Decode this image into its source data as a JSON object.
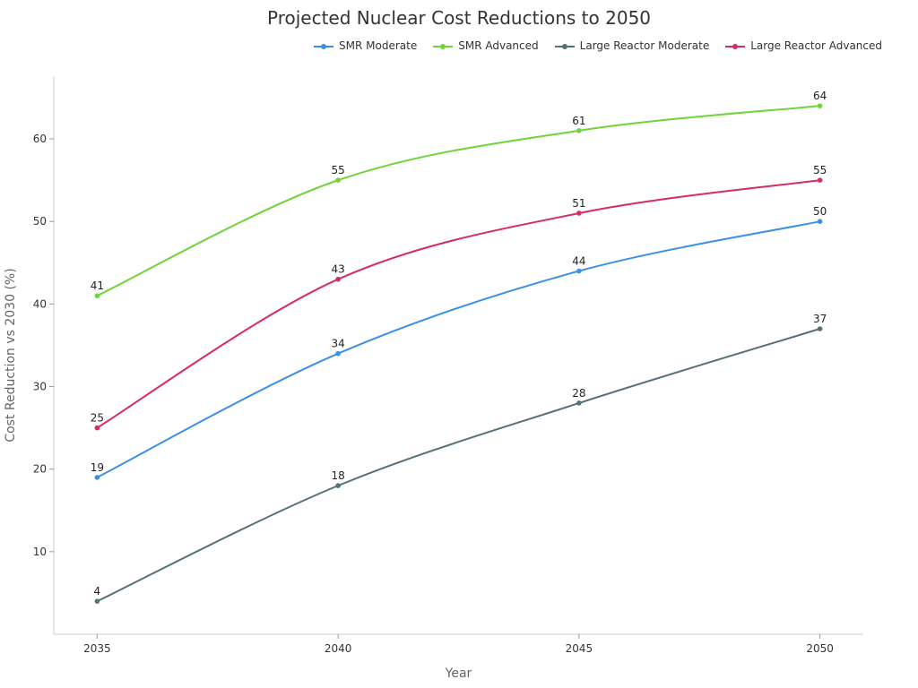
{
  "chart_data": {
    "type": "line",
    "title": "Projected Nuclear Cost Reductions to 2050",
    "xlabel": "Year",
    "ylabel": "Cost Reduction vs 2030 (%)",
    "x": [
      2035,
      2040,
      2045,
      2050
    ],
    "xticks": [
      "2035",
      "2040",
      "2045",
      "2050"
    ],
    "yticks": [
      "10",
      "20",
      "30",
      "40",
      "50",
      "60"
    ],
    "ytick_values": [
      10,
      20,
      30,
      40,
      50,
      60
    ],
    "xlim": [
      2034.1,
      2050.9
    ],
    "ylim": [
      0,
      67.6
    ],
    "grid": false,
    "legend": "top-right",
    "series": [
      {
        "name": "SMR Moderate",
        "values": [
          19,
          34,
          44,
          50
        ],
        "color": "#3b8fe6"
      },
      {
        "name": "SMR Advanced",
        "values": [
          41,
          55,
          61,
          64
        ],
        "color": "#6ed43a"
      },
      {
        "name": "Large Reactor Moderate",
        "values": [
          4,
          18,
          28,
          37
        ],
        "color": "#56707a"
      },
      {
        "name": "Large Reactor Advanced",
        "values": [
          25,
          43,
          51,
          55
        ],
        "color": "#d82c60"
      }
    ]
  }
}
